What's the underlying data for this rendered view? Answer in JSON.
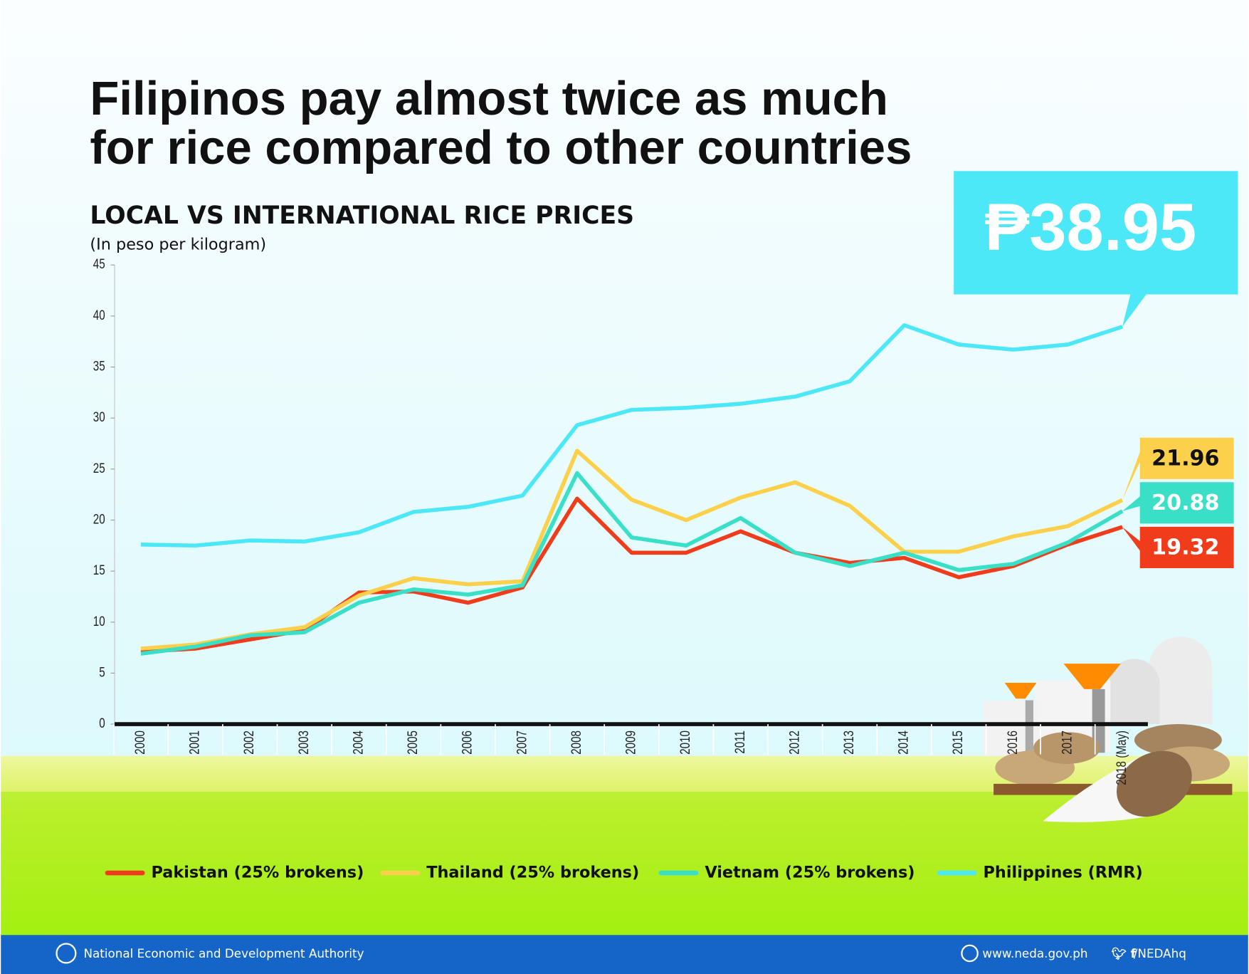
{
  "chart_data": {
    "type": "line",
    "title": [
      "Filipinos pay almost twice as much",
      "for rice compared to other countries"
    ],
    "subtitle": "LOCAL VS INTERNATIONAL RICE PRICES",
    "y_label": "(In peso per kilogram)",
    "categories": [
      "2000",
      "2001",
      "2002",
      "2003",
      "2004",
      "2005",
      "2006",
      "2007",
      "2008",
      "2009",
      "2010",
      "2011",
      "2012",
      "2013",
      "2014",
      "2015",
      "2016",
      "2017",
      "2018 (May)"
    ],
    "ylim": [
      0,
      45
    ],
    "yticks": [
      0,
      5,
      10,
      15,
      20,
      25,
      30,
      35,
      40,
      45
    ],
    "series": [
      {
        "name": "Pakistan (25% brokens)",
        "color": "#f03c1a",
        "values": [
          7.1,
          7.4,
          8.3,
          9.2,
          12.9,
          13.0,
          11.9,
          13.4,
          22.1,
          16.8,
          16.8,
          18.9,
          16.8,
          15.8,
          16.3,
          14.4,
          15.5,
          17.6,
          19.32
        ],
        "value_labels": [
          null,
          null,
          null,
          null,
          null,
          null,
          null,
          null,
          null,
          null,
          null,
          null,
          null,
          null,
          null,
          null,
          null,
          null,
          "19.32"
        ]
      },
      {
        "name": "Thailand (25% brokens)",
        "color": "#fcd04b",
        "values": [
          7.4,
          7.8,
          8.8,
          9.5,
          12.6,
          14.3,
          13.7,
          14.0,
          26.8,
          22.0,
          20.0,
          22.2,
          23.7,
          21.4,
          16.9,
          16.9,
          18.4,
          19.4,
          21.96
        ],
        "value_labels": [
          null,
          null,
          null,
          null,
          null,
          null,
          null,
          null,
          null,
          null,
          null,
          null,
          null,
          null,
          null,
          null,
          null,
          null,
          "21.96"
        ]
      },
      {
        "name": "Vietnam (25% brokens)",
        "color": "#3adfc8",
        "values": [
          6.9,
          7.6,
          8.7,
          9.0,
          11.9,
          13.2,
          12.7,
          13.6,
          24.6,
          18.3,
          17.5,
          20.2,
          16.8,
          15.5,
          16.8,
          15.1,
          15.7,
          17.8,
          20.88
        ],
        "value_labels": [
          null,
          null,
          null,
          null,
          null,
          null,
          null,
          null,
          null,
          null,
          null,
          null,
          null,
          null,
          null,
          null,
          null,
          null,
          "20.88"
        ]
      },
      {
        "name": "Philippines (RMR)",
        "color": "#4de8f8",
        "values": [
          17.6,
          17.5,
          18.0,
          17.9,
          18.8,
          20.8,
          21.3,
          22.4,
          29.3,
          30.8,
          31.0,
          31.4,
          32.1,
          33.6,
          39.1,
          37.2,
          36.7,
          37.2,
          38.95
        ],
        "value_labels": [
          null,
          null,
          null,
          null,
          null,
          null,
          null,
          null,
          null,
          null,
          null,
          null,
          null,
          null,
          null,
          null,
          null,
          null,
          "₱38.95"
        ]
      }
    ],
    "footer": {
      "agency": "National Economic and Development Authority",
      "website": "www.neda.gov.ph",
      "social": "/NEDAhq"
    }
  }
}
